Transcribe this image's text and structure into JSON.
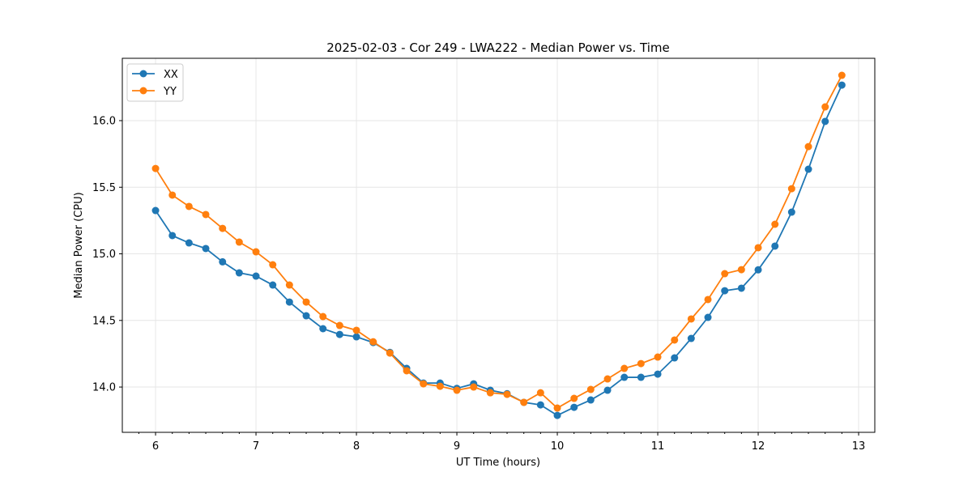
{
  "chart_data": {
    "type": "line",
    "title": "2025-02-03 - Cor 249 - LWA222 - Median Power vs. Time",
    "xlabel": "UT Time (hours)",
    "ylabel": "Median Power (CPU)",
    "xlim": [
      5.669,
      13.161
    ],
    "ylim": [
      13.66,
      16.468
    ],
    "xticks": [
      6,
      7,
      8,
      9,
      10,
      11,
      12,
      13
    ],
    "xtick_labels": [
      "6",
      "7",
      "8",
      "9",
      "10",
      "11",
      "12",
      "13"
    ],
    "yticks": [
      14.0,
      14.5,
      15.0,
      15.5,
      16.0
    ],
    "ytick_labels": [
      "14.0",
      "14.5",
      "15.0",
      "15.5",
      "16.0"
    ],
    "grid": true,
    "legend_position": "top-left",
    "x": [
      6.0,
      6.167,
      6.333,
      6.5,
      6.667,
      6.833,
      7.0,
      7.167,
      7.333,
      7.5,
      7.667,
      7.833,
      8.0,
      8.167,
      8.333,
      8.5,
      8.667,
      8.833,
      9.0,
      9.167,
      9.333,
      9.5,
      9.667,
      9.833,
      10.0,
      10.167,
      10.333,
      10.5,
      10.667,
      10.833,
      11.0,
      11.167,
      11.333,
      11.5,
      11.667,
      11.833,
      12.0,
      12.167,
      12.333,
      12.5,
      12.667,
      12.833
    ],
    "series": [
      {
        "name": "XX",
        "color": "#1f77b4",
        "values": [
          15.325,
          15.137,
          15.082,
          15.04,
          14.94,
          14.857,
          14.833,
          14.766,
          14.638,
          14.535,
          14.438,
          14.395,
          14.377,
          14.334,
          14.26,
          14.14,
          14.03,
          14.03,
          13.99,
          14.024,
          13.976,
          13.95,
          13.885,
          13.866,
          13.787,
          13.848,
          13.903,
          13.976,
          14.073,
          14.073,
          14.097,
          14.219,
          14.365,
          14.523,
          14.723,
          14.742,
          14.88,
          15.058,
          15.313,
          15.635,
          15.994,
          16.267
        ]
      },
      {
        "name": "YY",
        "color": "#ff7f0e",
        "values": [
          15.641,
          15.441,
          15.356,
          15.295,
          15.191,
          15.088,
          15.015,
          14.918,
          14.766,
          14.638,
          14.529,
          14.462,
          14.426,
          14.34,
          14.255,
          14.122,
          14.024,
          14.006,
          13.976,
          14.0,
          13.957,
          13.945,
          13.885,
          13.957,
          13.842,
          13.915,
          13.982,
          14.061,
          14.14,
          14.176,
          14.225,
          14.353,
          14.511,
          14.657,
          14.851,
          14.881,
          15.046,
          15.222,
          15.489,
          15.805,
          16.103,
          16.34
        ]
      }
    ]
  }
}
